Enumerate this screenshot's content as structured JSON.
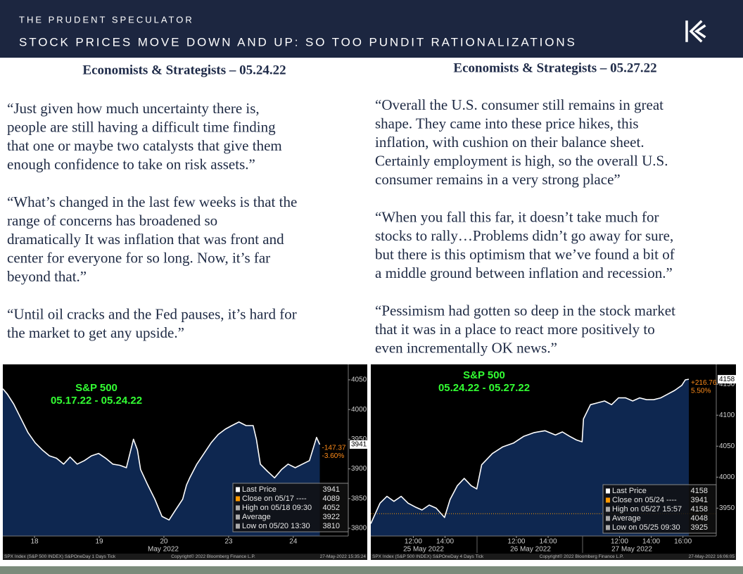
{
  "header": {
    "brand": "THE PRUDENT SPECULATOR",
    "title": "STOCK PRICES MOVE DOWN AND UP: SO TOO PUNDIT RATIONALIZATIONS"
  },
  "columns": [
    {
      "heading": "Economists & Strategists – 05.24.22",
      "quotes": [
        [
          "“Just given how much uncertainty there is,",
          "people are still having a difficult time finding",
          "that one or maybe two catalysts that give them",
          "enough confidence to take on risk assets.”"
        ],
        [
          "“What’s changed in the last few weeks is that the",
          "range of concerns has broadened so",
          "dramatically It was inflation that was front and",
          "center for everyone for so long. Now, it’s far",
          "beyond that.”"
        ],
        [
          "“Until oil cracks and the Fed pauses, it’s hard for",
          "the market to get any upside.”"
        ]
      ]
    },
    {
      "heading": "Economists & Strategists – 05.27.22",
      "quotes": [
        [
          "“Overall the U.S. consumer still remains in great",
          "shape. They came into these price hikes, this",
          "inflation, with cushion on their balance sheet.",
          "Certainly employment is high, so the overall U.S.",
          "consumer remains in a very strong place”"
        ],
        [
          "“When you fall this far, it doesn’t take much for",
          "stocks to rally…Problems didn’t go away for sure,",
          "but there is this optimism that we’ve found a bit of",
          "a middle ground between inflation and recession.”"
        ],
        [
          "“Pessimism had gotten so deep in the stock market",
          "that it was in a place to react more positively to",
          "even incrementally OK news.”"
        ]
      ]
    }
  ],
  "chart_data": [
    {
      "type": "line",
      "title": "S&P 500",
      "subtitle": "05.17.22 - 05.24.22",
      "x": [
        -0.49,
        -0.42,
        -0.32,
        -0.21,
        -0.1,
        0.01,
        0.12,
        0.23,
        0.34,
        0.45,
        0.55,
        0.66,
        0.77,
        0.88,
        0.99,
        1.1,
        1.21,
        1.32,
        1.42,
        1.53,
        1.59,
        1.64,
        1.75,
        1.86,
        1.97,
        2.08,
        2.18,
        2.29,
        2.35,
        2.4,
        2.51,
        2.62,
        2.73,
        2.84,
        2.95,
        3.05,
        3.16,
        3.27,
        3.38,
        3.43,
        3.49,
        3.6,
        3.71,
        3.82,
        3.92,
        4.03,
        4.14,
        4.25,
        4.36,
        4.41
      ],
      "values": [
        4035,
        4026,
        4009,
        3985,
        3961,
        3944,
        3932,
        3922,
        3918,
        3908,
        3920,
        3908,
        3914,
        3922,
        3926,
        3918,
        3908,
        3906,
        3902,
        3950,
        3932,
        3899,
        3873,
        3849,
        3820,
        3814,
        3831,
        3849,
        3873,
        3885,
        3908,
        3926,
        3944,
        3958,
        3967,
        3973,
        3979,
        3973,
        3973,
        3950,
        3908,
        3896,
        3885,
        3899,
        3908,
        3902,
        3908,
        3914,
        3953,
        3941
      ],
      "color": "#ffffff",
      "fill": "#0e2750",
      "xlim": [
        -0.49,
        4.85
      ],
      "ylim": [
        3787,
        4076
      ],
      "xticks": [
        {
          "value": 0,
          "label": "18"
        },
        {
          "value": 1,
          "label": "19"
        },
        {
          "value": 2,
          "label": "20"
        },
        {
          "value": 3,
          "label": "23"
        },
        {
          "value": 4,
          "label": "24"
        }
      ],
      "yticks": [
        3800,
        3850,
        3900,
        3950,
        4000,
        4050
      ],
      "x_group_labels": [
        "May 2022"
      ],
      "legend": [
        {
          "label": "Last Price",
          "value": 3941,
          "color": "#ffffff"
        },
        {
          "label": "Close on 05/17 ----",
          "value": 4089,
          "color": "#ff9900"
        },
        {
          "label": "High on 05/18 09:30",
          "value": 4052,
          "color": "#aaaaaa"
        },
        {
          "label": "Average",
          "value": 3922,
          "color": "#aaaaaa"
        },
        {
          "label": "Low on 05/20 13:30",
          "value": 3810,
          "color": "#aaaaaa"
        }
      ],
      "annotations": [
        "-147.37",
        "-3.60%"
      ],
      "annotation_color": "#ff8c1a",
      "footer": [
        "SPX Index (S&P 500 INDEX) S&POneDay 1 Days  Tick",
        "Copyright© 2022 Bloomberg Finance L.P.",
        "27-May-2022 15:35:24"
      ]
    },
    {
      "type": "line",
      "title": "S&P 500",
      "subtitle": "05.24.22 - 05.27.22",
      "x": [
        -0.18,
        0.4,
        0.84,
        1.28,
        1.73,
        2.17,
        2.61,
        3.05,
        3.5,
        3.94,
        4.47,
        4.82,
        5.27,
        5.71,
        6.15,
        6.5,
        6.81,
        7.48,
        8.14,
        8.81,
        9.47,
        10.13,
        10.8,
        11.46,
        11.9,
        12.35,
        12.79,
        13.14,
        13.23,
        13.67,
        14.12,
        14.56,
        15.0,
        15.44,
        15.88,
        16.33,
        16.77,
        17.21,
        17.65,
        18.1,
        18.54,
        18.98,
        19.42,
        19.65,
        19.87
      ],
      "values": [
        3925,
        3958,
        3969,
        3961,
        3969,
        3958,
        3952,
        3947,
        3955,
        3950,
        3935,
        3964,
        3986,
        3998,
        3986,
        3981,
        4020,
        4038,
        4049,
        4055,
        4066,
        4072,
        4075,
        4068,
        4073,
        4066,
        4060,
        4057,
        4094,
        4117,
        4120,
        4123,
        4117,
        4128,
        4128,
        4123,
        4128,
        4125,
        4125,
        4128,
        4134,
        4140,
        4148,
        4157,
        4158
      ],
      "color": "#ffffff",
      "fill": "#0e2750",
      "xlim": [
        -0.18,
        21.6
      ],
      "ylim": [
        3905,
        4182
      ],
      "xticks": [
        {
          "value": 2.5,
          "label": "12:00"
        },
        {
          "value": 4.5,
          "label": "14:00"
        },
        {
          "value": 9,
          "label": "12:00"
        },
        {
          "value": 11,
          "label": "14:00"
        },
        {
          "value": 15.5,
          "label": "12:00"
        },
        {
          "value": 17.5,
          "label": "14:00"
        },
        {
          "value": 19.5,
          "label": "16:00"
        }
      ],
      "yticks": [
        3950,
        4000,
        4050,
        4100,
        4150
      ],
      "x_group_labels": [
        "25 May 2022",
        "26 May 2022",
        "27 May 2022"
      ],
      "legend": [
        {
          "label": "Last Price",
          "value": 4158,
          "color": "#ffffff"
        },
        {
          "label": "Close on 05/24 ----",
          "value": 3941,
          "color": "#ff9900"
        },
        {
          "label": "High on 05/27 15:57",
          "value": 4158,
          "color": "#aaaaaa"
        },
        {
          "label": "Average",
          "value": 4048,
          "color": "#aaaaaa"
        },
        {
          "label": "Low on 05/25 09:30",
          "value": 3925,
          "color": "#aaaaaa"
        }
      ],
      "annotations": [
        "+216.76",
        "5.50%"
      ],
      "annotation_color": "#ff8c1a",
      "footer": [
        "SPX Index (S&P 500 INDEX) S&POneDay 4 Days  Tick",
        "Copyright© 2022 Bloomberg Finance L.P.",
        "27-May-2022 16:06:05"
      ]
    }
  ]
}
